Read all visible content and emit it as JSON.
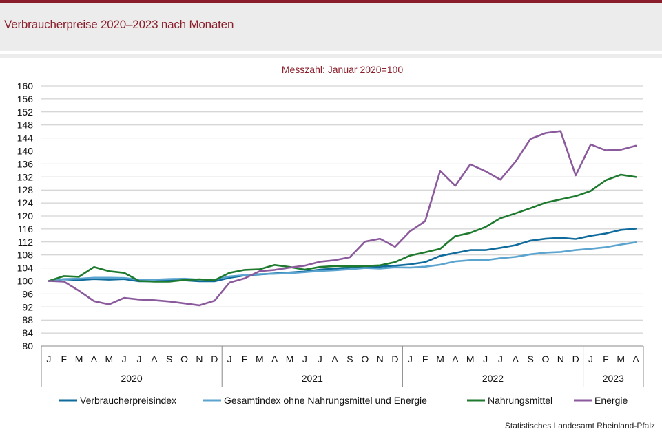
{
  "header": {
    "title": "Verbraucherpreise 2020–2023 nach Monaten"
  },
  "footer": {
    "source": "Statistisches Landesamt Rheinland-Pfalz"
  },
  "chart_data": {
    "type": "line",
    "subtitle": "Messzahl: Januar 2020=100",
    "ylim": [
      80,
      160
    ],
    "yticks": [
      80,
      84,
      88,
      92,
      96,
      100,
      104,
      108,
      112,
      116,
      120,
      124,
      128,
      132,
      136,
      140,
      144,
      148,
      152,
      156,
      160
    ],
    "grid": true,
    "legend_position": "bottom",
    "x": [
      "J",
      "F",
      "M",
      "A",
      "M",
      "J",
      "J",
      "A",
      "S",
      "O",
      "N",
      "D",
      "J",
      "F",
      "M",
      "A",
      "M",
      "J",
      "J",
      "A",
      "S",
      "O",
      "N",
      "D",
      "J",
      "F",
      "M",
      "A",
      "M",
      "J",
      "J",
      "A",
      "S",
      "O",
      "N",
      "D",
      "J",
      "F",
      "M",
      "A"
    ],
    "year_groups": [
      {
        "label": "2020",
        "count": 12
      },
      {
        "label": "2021",
        "count": 12
      },
      {
        "label": "2022",
        "count": 12
      },
      {
        "label": "2023",
        "count": 4
      }
    ],
    "series": [
      {
        "name": "Verbraucherpreisindex",
        "color": "#0f6b9c",
        "values": [
          100.0,
          100.5,
          100.3,
          100.6,
          100.4,
          100.6,
          99.9,
          99.9,
          100.2,
          100.2,
          99.9,
          99.9,
          101.0,
          101.7,
          102.0,
          102.3,
          102.6,
          102.9,
          103.5,
          103.8,
          104.1,
          104.3,
          104.4,
          104.7,
          105.1,
          105.8,
          107.7,
          108.6,
          109.5,
          109.5,
          110.2,
          111.0,
          112.4,
          113.0,
          113.3,
          112.9,
          113.9,
          114.6,
          115.7,
          116.1
        ]
      },
      {
        "name": "Gesamtindex ohne Nahrungsmittel und Energie",
        "color": "#5ba4cf",
        "values": [
          100.0,
          100.6,
          100.7,
          101.0,
          101.0,
          100.9,
          100.4,
          100.4,
          100.6,
          100.7,
          100.4,
          100.4,
          101.4,
          101.8,
          102.1,
          102.2,
          102.4,
          102.7,
          103.1,
          103.3,
          103.6,
          104.0,
          103.8,
          104.2,
          104.1,
          104.4,
          105.0,
          106.0,
          106.4,
          106.4,
          107.0,
          107.4,
          108.2,
          108.7,
          108.9,
          109.5,
          109.9,
          110.4,
          111.2,
          111.9
        ]
      },
      {
        "name": "Nahrungsmittel",
        "color": "#1e7a2e",
        "values": [
          100.0,
          101.5,
          101.3,
          104.3,
          103.0,
          102.5,
          100.0,
          99.8,
          99.8,
          100.3,
          100.5,
          100.2,
          102.5,
          103.4,
          103.6,
          104.9,
          104.3,
          103.5,
          104.3,
          104.6,
          104.5,
          104.6,
          104.8,
          105.8,
          107.8,
          108.8,
          109.9,
          113.8,
          114.8,
          116.6,
          119.3,
          120.8,
          122.4,
          124.1,
          125.1,
          126.1,
          127.7,
          131.0,
          132.7,
          132.0
        ]
      },
      {
        "name": "Energie",
        "color": "#8b5a9c",
        "values": [
          100.0,
          99.8,
          97.0,
          93.8,
          92.8,
          94.8,
          94.3,
          94.1,
          93.7,
          93.1,
          92.5,
          93.9,
          99.5,
          100.8,
          103.0,
          103.4,
          104.1,
          104.7,
          105.9,
          106.4,
          107.3,
          112.1,
          113.0,
          110.5,
          115.3,
          118.4,
          133.9,
          129.3,
          135.9,
          133.8,
          131.2,
          136.7,
          143.7,
          145.5,
          146.1,
          132.5,
          142.0,
          140.2,
          140.4,
          141.6
        ]
      }
    ]
  }
}
